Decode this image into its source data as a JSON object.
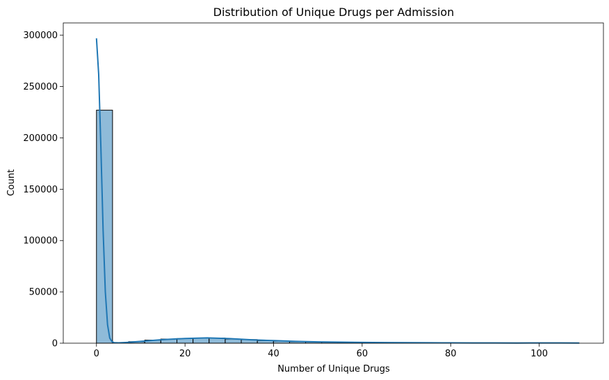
{
  "chart_data": {
    "type": "bar",
    "title": "Distribution of Unique Drugs per Admission",
    "xlabel": "Number of Unique Drugs",
    "ylabel": "Count",
    "xlim": [
      -7.5,
      114.5
    ],
    "ylim": [
      0,
      312000
    ],
    "xticks": [
      0,
      20,
      40,
      60,
      80,
      100
    ],
    "yticks": [
      0,
      50000,
      100000,
      150000,
      200000,
      250000,
      300000
    ],
    "grid": false,
    "bins": [
      {
        "x0": 0.0,
        "x1": 3.63,
        "count": 227000
      },
      {
        "x0": 3.63,
        "x1": 7.27,
        "count": 500
      },
      {
        "x0": 7.27,
        "x1": 10.9,
        "count": 1500
      },
      {
        "x0": 10.9,
        "x1": 14.53,
        "count": 3000
      },
      {
        "x0": 14.53,
        "x1": 18.17,
        "count": 4000
      },
      {
        "x0": 18.17,
        "x1": 21.8,
        "count": 4500
      },
      {
        "x0": 21.8,
        "x1": 25.43,
        "count": 5000
      },
      {
        "x0": 25.43,
        "x1": 29.07,
        "count": 5000
      },
      {
        "x0": 29.07,
        "x1": 32.7,
        "count": 4000
      },
      {
        "x0": 32.7,
        "x1": 36.33,
        "count": 3500
      },
      {
        "x0": 36.33,
        "x1": 39.97,
        "count": 2500
      },
      {
        "x0": 39.97,
        "x1": 43.6,
        "count": 2000
      },
      {
        "x0": 43.6,
        "x1": 47.23,
        "count": 1500
      },
      {
        "x0": 47.23,
        "x1": 50.87,
        "count": 1300
      },
      {
        "x0": 50.87,
        "x1": 54.5,
        "count": 1000
      },
      {
        "x0": 54.5,
        "x1": 58.13,
        "count": 1000
      },
      {
        "x0": 58.13,
        "x1": 61.77,
        "count": 900
      },
      {
        "x0": 61.77,
        "x1": 65.4,
        "count": 700
      },
      {
        "x0": 65.4,
        "x1": 69.03,
        "count": 600
      },
      {
        "x0": 69.03,
        "x1": 72.67,
        "count": 500
      },
      {
        "x0": 72.67,
        "x1": 76.3,
        "count": 500
      },
      {
        "x0": 76.3,
        "x1": 79.93,
        "count": 400
      },
      {
        "x0": 79.93,
        "x1": 83.57,
        "count": 300
      },
      {
        "x0": 83.57,
        "x1": 87.2,
        "count": 300
      },
      {
        "x0": 87.2,
        "x1": 90.83,
        "count": 250
      },
      {
        "x0": 90.83,
        "x1": 94.47,
        "count": 200
      },
      {
        "x0": 94.47,
        "x1": 98.1,
        "count": 200
      },
      {
        "x0": 98.1,
        "x1": 101.73,
        "count": 200
      },
      {
        "x0": 101.73,
        "x1": 105.37,
        "count": 300
      },
      {
        "x0": 105.37,
        "x1": 109.0,
        "count": 200
      }
    ],
    "kde": {
      "x": [
        0,
        0.5,
        1,
        1.5,
        2,
        2.5,
        3,
        3.5,
        4,
        5,
        7,
        10,
        15,
        20,
        25,
        30,
        35,
        40,
        45,
        50,
        55,
        60,
        65,
        70,
        75,
        80,
        85,
        90,
        95,
        100,
        105,
        109
      ],
      "y": [
        297000,
        262000,
        190000,
        110000,
        50000,
        18000,
        5000,
        1500,
        500,
        300,
        800,
        1800,
        3500,
        4600,
        5200,
        4500,
        3300,
        2500,
        1800,
        1300,
        1000,
        800,
        600,
        500,
        400,
        300,
        250,
        220,
        200,
        250,
        250,
        200
      ]
    },
    "colors": {
      "bar_fill": "#1f77b4",
      "bar_fill_opacity": 0.5,
      "bar_edge": "#000000",
      "kde_line": "#1f77b4"
    }
  }
}
